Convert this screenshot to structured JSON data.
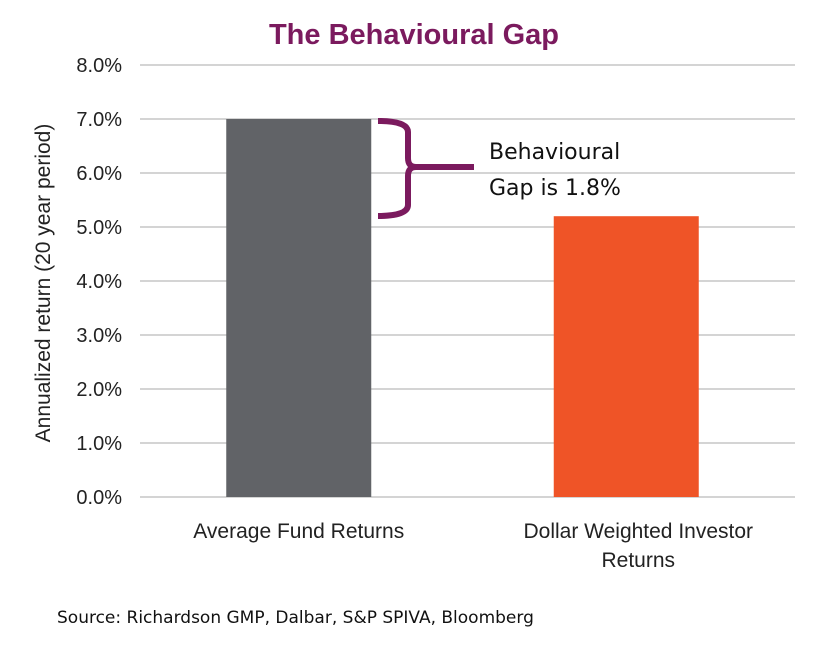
{
  "chart_data": {
    "type": "bar",
    "title": "The Behavioural Gap",
    "xlabel": "",
    "ylabel": "Annualized return (20 year period)",
    "ylim": [
      0,
      8
    ],
    "yticks": [
      "0.0%",
      "1.0%",
      "2.0%",
      "3.0%",
      "4.0%",
      "5.0%",
      "6.0%",
      "7.0%",
      "8.0%"
    ],
    "categories": [
      [
        "Average Fund Returns"
      ],
      [
        "Dollar Weighted Investor",
        "Returns"
      ]
    ],
    "values": [
      7.0,
      5.2
    ],
    "colors": [
      "#616367",
      "#ef5427"
    ],
    "grid": true,
    "annotation": {
      "lines": [
        "Behavioural",
        "Gap is 1.8%"
      ],
      "color": "#7b1a5e"
    },
    "source": "Source: Richardson GMP, Dalbar, S&P SPIVA, Bloomberg"
  }
}
